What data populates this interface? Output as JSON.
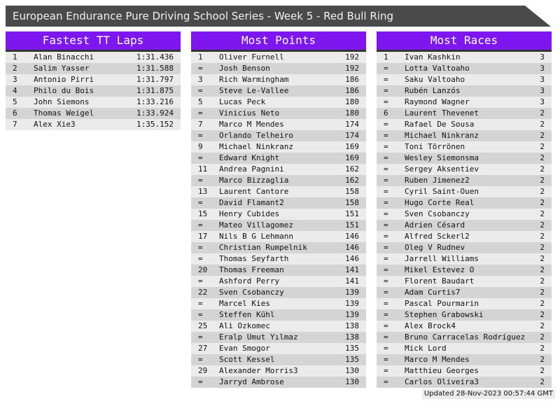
{
  "title_bar": {
    "title": "European Endurance Pure Driving School Series - Week 5 - Red Bull Ring"
  },
  "colors": {
    "accent": "#7e17ef",
    "title_bar_bg": "#4a4a4a",
    "row_odd": "#ebebeb",
    "row_even": "#d4d4d4",
    "header_underline": "#333333",
    "text": "#111111"
  },
  "tables": [
    {
      "title": "Fastest TT Laps",
      "rows": [
        [
          "1",
          "Alan Binacchi",
          "1:31.436"
        ],
        [
          "2",
          "Salim Yasser",
          "1:31.588"
        ],
        [
          "3",
          "Antonio Pirri",
          "1:31.797"
        ],
        [
          "4",
          "Philo du Bois",
          "1:31.875"
        ],
        [
          "5",
          "John Siemons",
          "1:33.216"
        ],
        [
          "6",
          "Thomas Weigel",
          "1:33.924"
        ],
        [
          "7",
          "Alex Xie3",
          "1:35.152"
        ]
      ]
    },
    {
      "title": "Most Points",
      "rows": [
        [
          "1",
          "Oliver Furnell",
          "192"
        ],
        [
          "=",
          "Josh Benson",
          "192"
        ],
        [
          "3",
          "Rich Warmingham",
          "186"
        ],
        [
          "=",
          "Steve Le-Vallee",
          "186"
        ],
        [
          "5",
          "Lucas Peck",
          "180"
        ],
        [
          "=",
          "Vinicius Neto",
          "180"
        ],
        [
          "7",
          "Marco M Mendes",
          "174"
        ],
        [
          "=",
          "Orlando Telheiro",
          "174"
        ],
        [
          "9",
          "Michael Ninkranz",
          "169"
        ],
        [
          "=",
          "Edward Knight",
          "169"
        ],
        [
          "11",
          "Andrea Pagnini",
          "162"
        ],
        [
          "=",
          "Marco Bizzaglia",
          "162"
        ],
        [
          "13",
          "Laurent Cantore",
          "158"
        ],
        [
          "=",
          "David Flamant2",
          "158"
        ],
        [
          "15",
          "Henry Cubides",
          "151"
        ],
        [
          "=",
          "Mateo Villagomez",
          "151"
        ],
        [
          "17",
          "Nils B G Lehmann",
          "146"
        ],
        [
          "=",
          "Christian Rumpelnik",
          "146"
        ],
        [
          "=",
          "Thomas Seyfarth",
          "146"
        ],
        [
          "20",
          "Thomas Freeman",
          "141"
        ],
        [
          "=",
          "Ashford Perry",
          "141"
        ],
        [
          "22",
          "Sven Csobanczy",
          "139"
        ],
        [
          "=",
          "Marcel Kies",
          "139"
        ],
        [
          "=",
          "Steffen Kühl",
          "139"
        ],
        [
          "25",
          "Ali Ozkomec",
          "138"
        ],
        [
          "=",
          "Eralp Umut Yılmaz",
          "138"
        ],
        [
          "27",
          "Evan Smogor",
          "135"
        ],
        [
          "=",
          "Scott Kessel",
          "135"
        ],
        [
          "29",
          "Alexander Morris3",
          "130"
        ],
        [
          "=",
          "Jarryd Ambrose",
          "130"
        ]
      ]
    },
    {
      "title": "Most Races",
      "rows": [
        [
          "1",
          "Ivan Kashkin",
          "3"
        ],
        [
          "=",
          "Lotta Valtoaho",
          "3"
        ],
        [
          "=",
          "Saku Valtoaho",
          "3"
        ],
        [
          "=",
          "Rubén Lanzós",
          "3"
        ],
        [
          "=",
          "Raymond Wagner",
          "3"
        ],
        [
          "6",
          "Laurent Thevenet",
          "2"
        ],
        [
          "=",
          "Rafael De Sousa",
          "2"
        ],
        [
          "=",
          "Michael Ninkranz",
          "2"
        ],
        [
          "=",
          "Toni Törrönen",
          "2"
        ],
        [
          "=",
          "Wesley Siemonsma",
          "2"
        ],
        [
          "=",
          "Sergey Aksentiev",
          "2"
        ],
        [
          "=",
          "Ruben Jimenez2",
          "2"
        ],
        [
          "=",
          "Cyril Saint-Ouen",
          "2"
        ],
        [
          "=",
          "Hugo Corte Real",
          "2"
        ],
        [
          "=",
          "Sven Csobanczy",
          "2"
        ],
        [
          "=",
          "Adrien Césard",
          "2"
        ],
        [
          "=",
          "Alfred Sckerl2",
          "2"
        ],
        [
          "=",
          "Oleg V Rudnev",
          "2"
        ],
        [
          "=",
          "Jarrell Williams",
          "2"
        ],
        [
          "=",
          "Mikel Estevez O",
          "2"
        ],
        [
          "=",
          "Florent Baudart",
          "2"
        ],
        [
          "=",
          "Adam Curtis7",
          "2"
        ],
        [
          "=",
          "Pascal Pourmarin",
          "2"
        ],
        [
          "=",
          "Stephen Grabowski",
          "2"
        ],
        [
          "=",
          "Alex Brock4",
          "2"
        ],
        [
          "=",
          "Bruno Carracelas Rodríguez",
          "2"
        ],
        [
          "=",
          "Mick Lord",
          "2"
        ],
        [
          "=",
          "Marco M Mendes",
          "2"
        ],
        [
          "=",
          "Matthieu Georges",
          "2"
        ],
        [
          "=",
          "Carlos Oliveira3",
          "2"
        ]
      ]
    }
  ],
  "footer": {
    "updated": "Updated 28-Nov-2023 00:57:44 GMT"
  }
}
